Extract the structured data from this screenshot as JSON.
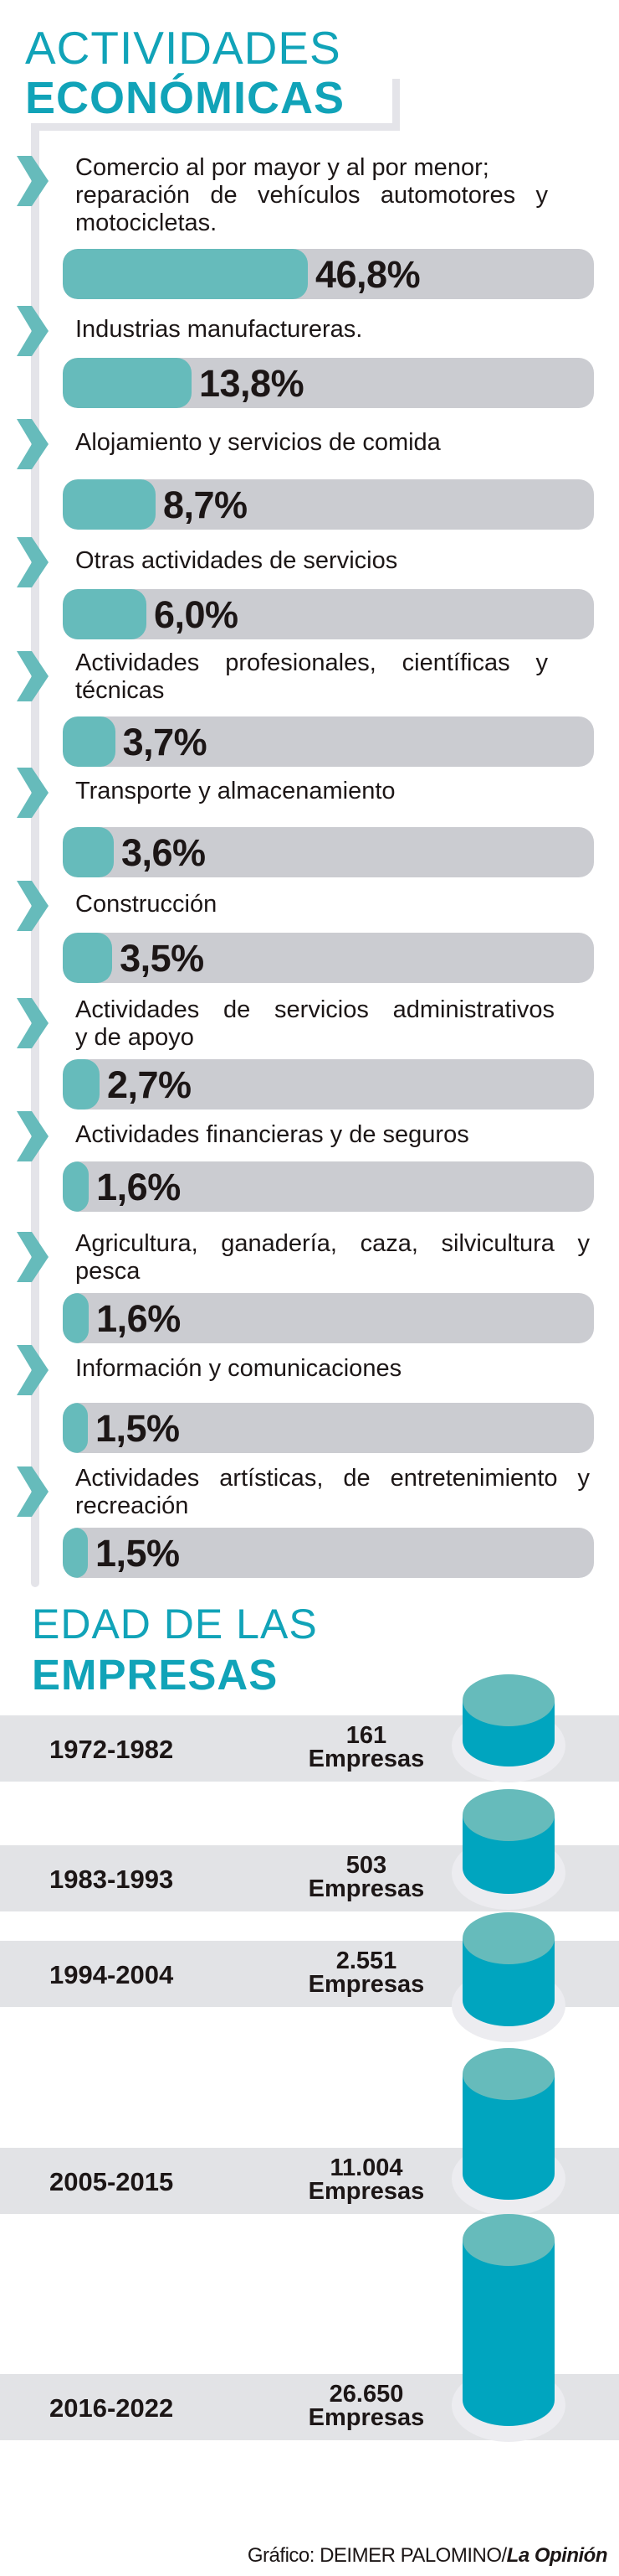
{
  "section1": {
    "title_light": "ACTIVIDADES",
    "title_bold": "ECONÓMICAS"
  },
  "chart_data": [
    {
      "type": "bar",
      "orientation": "horizontal",
      "unit": "%",
      "categories": [
        [
          "Comercio al por mayor y al por menor;",
          "reparación de vehículos automotores y",
          "motocicletas."
        ],
        [
          "Industrias manufactureras."
        ],
        [
          "Alojamiento y servicios de comida"
        ],
        [
          "Otras actividades de servicios"
        ],
        [
          "Actividades profesionales, científicas y",
          "técnicas"
        ],
        [
          "Transporte y almacenamiento"
        ],
        [
          "Construcción"
        ],
        [
          "Actividades de servicios administrativos",
          "y de apoyo"
        ],
        [
          "Actividades financieras y de seguros"
        ],
        [
          "Agricultura, ganadería, caza, silvicultura y",
          "pesca"
        ],
        [
          "Información y comunicaciones"
        ],
        [
          "Actividades artísticas, de entretenimiento y",
          "recreación"
        ]
      ],
      "values": [
        46.8,
        13.8,
        8.7,
        6.0,
        3.7,
        3.6,
        3.5,
        2.7,
        1.6,
        1.6,
        1.5,
        1.5
      ],
      "value_labels": [
        "46,8%",
        "13,8%",
        "8,7%",
        "6,0%",
        "3,7%",
        "3,6%",
        "3,5%",
        "2,7%",
        "1,6%",
        "1,6%",
        "1,5%",
        "1,5%"
      ],
      "icon": "chevron-right-icon"
    },
    {
      "type": "bar",
      "style": "cylinder",
      "title_light": "EDAD DE LAS",
      "title_bold": "EMPRESAS",
      "categories": [
        "1972-1982",
        "1983-1993",
        "1994-2004",
        "2005-2015",
        "2016-2022"
      ],
      "values": [
        161,
        503,
        2551,
        11004,
        26650
      ],
      "value_labels": [
        "161",
        "503",
        "2.551",
        "11.004",
        "26.650"
      ],
      "unit_label": "Empresas"
    }
  ],
  "colors": {
    "title": "#11a3b8",
    "bar_fill": "#66bbbb",
    "bar_track": "#cbccd1",
    "cylinder_top": "#66bbbb",
    "cylinder_body": "#00a5bf",
    "row_band": "#e2e3e6"
  },
  "footer": {
    "credit": "Gráfico: DEIMER PALOMINO/",
    "brand": "La Opinión"
  }
}
